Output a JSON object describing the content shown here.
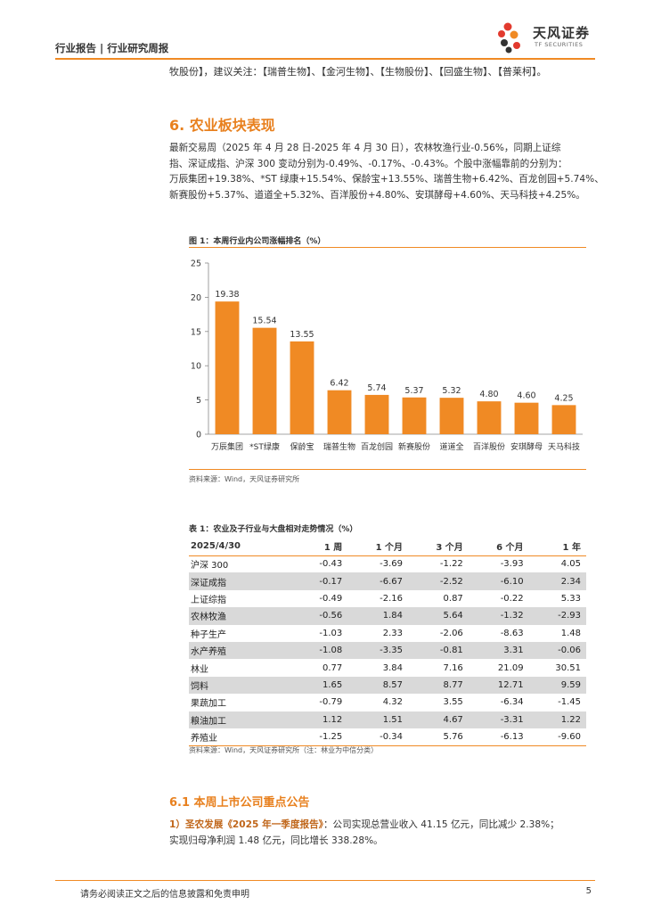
{
  "header": {
    "title": "行业报告 | 行业研究周报",
    "logo_cn": "天风证券",
    "logo_en": "TF SECURITIES"
  },
  "intro_line": "牧股份】，建议关注：【瑞普生物】、【金河生物】、【生物股份】、【回盛生物】、【普莱柯】。",
  "section": {
    "title": "6. 农业板块表现"
  },
  "paragraph": [
    "最新交易周（2025 年 4 月 28 日-2025 年 4 月 30 日），农林牧渔行业-0.56%，同期上证综",
    "指、深证成指、沪深 300 变动分别为-0.49%、-0.17%、-0.43%。个股中涨幅靠前的分别为：",
    "万辰集团+19.38%、*ST 绿康+15.54%、保龄宝+13.55%、瑞普生物+6.42%、百龙创园+5.74%、",
    "新赛股份+5.37%、道道全+5.32%、百洋股份+4.80%、安琪酵母+4.60%、天马科技+4.25%。"
  ],
  "figure": {
    "title": "图 1：本周行业内公司涨幅排名（%）",
    "source": "资料来源：Wind，天风证券研究所"
  },
  "chart_data": {
    "type": "bar",
    "categories": [
      "万辰集团",
      "*ST绿康",
      "保龄宝",
      "瑞普生物",
      "百龙创园",
      "新赛股份",
      "道道全",
      "百洋股份",
      "安琪酵母",
      "天马科技"
    ],
    "values": [
      19.38,
      15.54,
      13.55,
      6.42,
      5.74,
      5.37,
      5.32,
      4.8,
      4.6,
      4.25
    ],
    "value_labels": [
      "19.38",
      "15.54",
      "13.55",
      "6.42",
      "5.74",
      "5.37",
      "5.32",
      "4.80",
      "4.60",
      "4.25"
    ],
    "yticks": [
      "0",
      "5",
      "10",
      "15",
      "20",
      "25"
    ],
    "ylim": [
      0,
      25
    ],
    "bar_color": "#f08a24",
    "grid": false
  },
  "table": {
    "title": "表 1：农业及子行业与大盘相对走势情况（%）",
    "headers": [
      "2025/4/30",
      "1 周",
      "1 个月",
      "3 个月",
      "6 个月",
      "1 年"
    ],
    "rows": [
      [
        "沪深 300",
        "-0.43",
        "-3.69",
        "-1.22",
        "-3.93",
        "4.05"
      ],
      [
        "深证成指",
        "-0.17",
        "-6.67",
        "-2.52",
        "-6.10",
        "2.34"
      ],
      [
        "上证综指",
        "-0.49",
        "-2.16",
        "0.87",
        "-0.22",
        "5.33"
      ],
      [
        "农林牧渔",
        "-0.56",
        "1.84",
        "5.64",
        "-1.32",
        "-2.93"
      ],
      [
        "种子生产",
        "-1.03",
        "2.33",
        "-2.06",
        "-8.63",
        "1.48"
      ],
      [
        "水产养殖",
        "-1.08",
        "-3.35",
        "-0.81",
        "3.31",
        "-0.06"
      ],
      [
        "林业",
        "0.77",
        "3.84",
        "7.16",
        "21.09",
        "30.51"
      ],
      [
        "饲料",
        "1.65",
        "8.57",
        "8.77",
        "12.71",
        "9.59"
      ],
      [
        "果蔬加工",
        "-0.79",
        "4.32",
        "3.55",
        "-6.34",
        "-1.45"
      ],
      [
        "粮油加工",
        "1.12",
        "1.51",
        "4.67",
        "-3.31",
        "1.22"
      ],
      [
        "养殖业",
        "-1.25",
        "-0.34",
        "5.76",
        "-6.13",
        "-9.60"
      ]
    ],
    "source": "资料来源：Wind，天风证券研究所（注：林业为中信分类）"
  },
  "subsection": {
    "title": "6.1 本周上市公司重点公告",
    "item_prefix": "1）圣农发展《2025 年一季度报告》",
    "item_line1": "：公司实现总营业收入 41.15 亿元，同比减少 2.38%；",
    "item_line2": "实现归母净利润 1.48 亿元，同比增长 338.28%。"
  },
  "footer": {
    "disclaimer": "请务必阅读正文之后的信息披露和免责申明",
    "page": "5"
  }
}
